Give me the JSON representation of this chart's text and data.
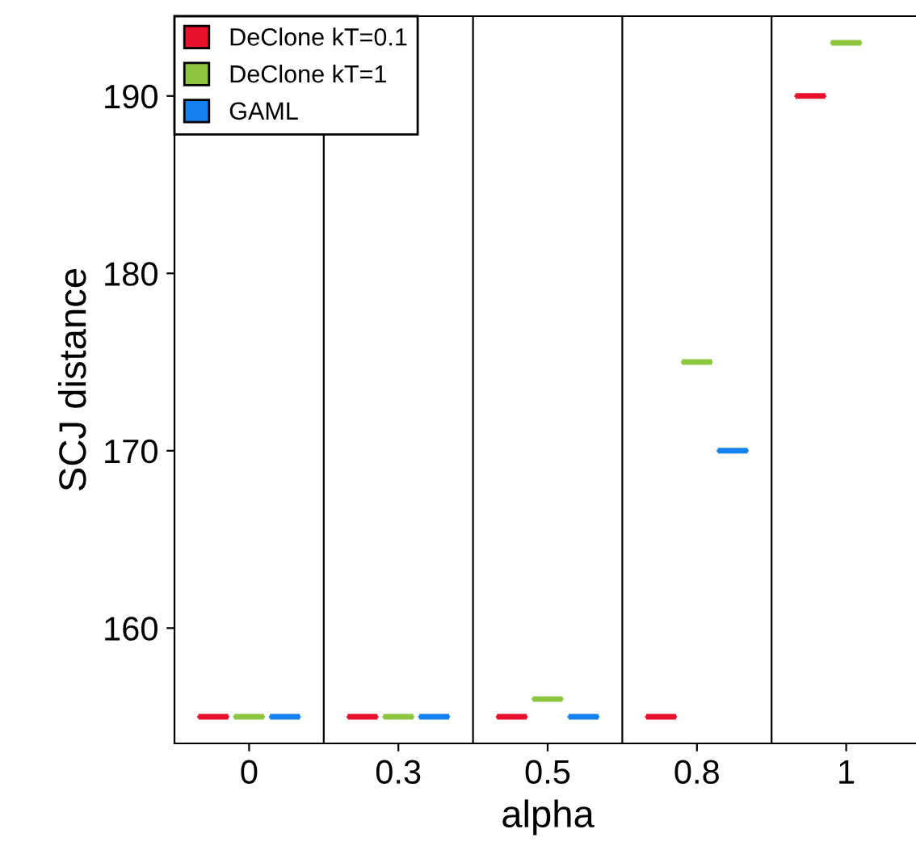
{
  "chart_data": {
    "type": "box",
    "xlabel": "alpha",
    "ylabel": "SCJ distance",
    "categories": [
      "0",
      "0.3",
      "0.5",
      "0.8",
      "1"
    ],
    "ylim": [
      153.5,
      194.5
    ],
    "yticks": [
      160,
      170,
      180,
      190
    ],
    "legend": "top left",
    "grid": false,
    "series": [
      {
        "name": "DeClone kT=0.1",
        "color": "#e8112d",
        "boxes": [
          {
            "low": 155,
            "q1": 155,
            "median": 155,
            "q3": 155,
            "high": 155
          },
          {
            "low": 155,
            "q1": 155,
            "median": 155,
            "q3": 155,
            "high": 155
          },
          {
            "low": 155,
            "q1": 155,
            "median": 155,
            "q3": 155,
            "high": 155
          },
          {
            "low": 155,
            "q1": 155,
            "median": 155,
            "q3": 155,
            "high": 155
          },
          {
            "low": 190,
            "q1": 190,
            "median": 190,
            "q3": 190,
            "high": 190
          }
        ]
      },
      {
        "name": "DeClone kT=1",
        "color": "#8cc63f",
        "boxes": [
          {
            "low": 155,
            "q1": 155,
            "median": 155,
            "q3": 155,
            "high": 155
          },
          {
            "low": 155,
            "q1": 155,
            "median": 155,
            "q3": 155,
            "high": 155
          },
          {
            "low": 156,
            "q1": 156,
            "median": 156,
            "q3": 156,
            "high": 156
          },
          {
            "low": 175,
            "q1": 175,
            "median": 175,
            "q3": 175,
            "high": 175
          },
          {
            "low": 193,
            "q1": 193,
            "median": 193,
            "q3": 193,
            "high": 193
          }
        ]
      },
      {
        "name": "GAML",
        "color": "#1580f0",
        "boxes": [
          {
            "low": 155,
            "q1": 155,
            "median": 155,
            "q3": 155,
            "high": 155
          },
          {
            "low": 155,
            "q1": 155,
            "median": 155,
            "q3": 155,
            "high": 155
          },
          {
            "low": 155,
            "q1": 155,
            "median": 155,
            "q3": 155,
            "high": 155
          },
          {
            "low": 170,
            "q1": 170,
            "median": 170,
            "q3": 170,
            "high": 170
          },
          null
        ]
      }
    ]
  }
}
